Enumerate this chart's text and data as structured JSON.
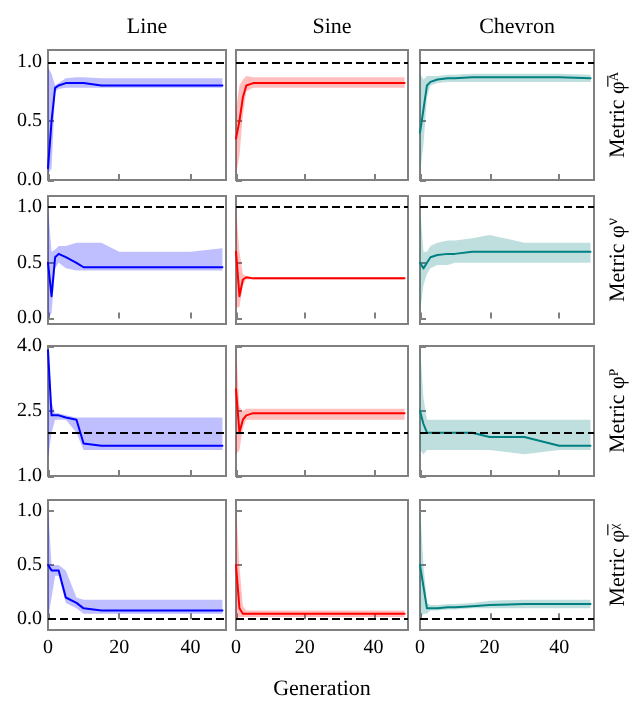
{
  "chart_data": [
    {
      "type": "line",
      "title": "Line",
      "x": [
        0,
        1,
        2,
        3,
        5,
        8,
        10,
        15,
        20,
        30,
        40,
        49
      ],
      "xlim": [
        0,
        50
      ],
      "xticks": [
        {
          "value": 0,
          "label": null
        },
        {
          "value": 20,
          "label": null
        },
        {
          "value": 40,
          "label": null
        }
      ],
      "ylim": [
        0,
        1.1
      ],
      "yticks": [
        {
          "value": 0,
          "label": "0.0"
        },
        {
          "value": 0.5,
          "label": "0.5"
        },
        {
          "value": 1,
          "label": "1.0"
        }
      ],
      "tick_labels": "y",
      "marker": "none",
      "ref_lines": [
        {
          "axis": "y",
          "value": 1,
          "color": "#000000",
          "line_style": "dashed"
        }
      ],
      "series": [
        {
          "color": "#0000ff",
          "values": [
            0.1,
            0.5,
            0.78,
            0.8,
            0.82,
            0.82,
            0.82,
            0.8,
            0.8,
            0.8,
            0.8,
            0.8
          ],
          "lower": [
            0.05,
            0.1,
            0.75,
            0.77,
            0.78,
            0.78,
            0.78,
            0.78,
            0.78,
            0.78,
            0.78,
            0.78
          ],
          "upper": [
            0.95,
            0.9,
            0.8,
            0.82,
            0.86,
            0.87,
            0.87,
            0.86,
            0.86,
            0.86,
            0.86,
            0.86
          ]
        }
      ]
    },
    {
      "type": "line",
      "title": "Sine",
      "x": [
        0,
        1,
        2,
        3,
        5,
        8,
        10,
        15,
        20,
        30,
        40,
        49
      ],
      "xlim": [
        0,
        50
      ],
      "xticks": [
        {
          "value": 0,
          "label": null
        },
        {
          "value": 20,
          "label": null
        },
        {
          "value": 40,
          "label": null
        }
      ],
      "ylim": [
        0,
        1.1
      ],
      "yticks": [
        {
          "value": 0,
          "label": null
        },
        {
          "value": 0.5,
          "label": null
        },
        {
          "value": 1,
          "label": null
        }
      ],
      "tick_labels": false,
      "marker": "none",
      "ref_lines": [
        {
          "axis": "y",
          "value": 1,
          "color": "#000000",
          "line_style": "dashed"
        }
      ],
      "series": [
        {
          "color": "#ff0000",
          "values": [
            0.35,
            0.5,
            0.7,
            0.8,
            0.82,
            0.82,
            0.82,
            0.82,
            0.82,
            0.82,
            0.82,
            0.82
          ],
          "lower": [
            0.05,
            0.2,
            0.55,
            0.75,
            0.78,
            0.78,
            0.78,
            0.78,
            0.78,
            0.78,
            0.78,
            0.78
          ],
          "upper": [
            0.6,
            0.8,
            0.85,
            0.88,
            0.87,
            0.87,
            0.87,
            0.87,
            0.87,
            0.87,
            0.87,
            0.87
          ]
        }
      ]
    },
    {
      "type": "line",
      "title": "Chevron",
      "ylabel": "Metric φ̅ᴬ",
      "x": [
        0,
        1,
        2,
        3,
        5,
        8,
        10,
        15,
        20,
        30,
        40,
        49
      ],
      "xlim": [
        0,
        50
      ],
      "xticks": [
        {
          "value": 0,
          "label": null
        },
        {
          "value": 20,
          "label": null
        },
        {
          "value": 40,
          "label": null
        }
      ],
      "ylim": [
        0,
        1.1
      ],
      "yticks": [
        {
          "value": 0,
          "label": null
        },
        {
          "value": 0.5,
          "label": null
        },
        {
          "value": 1,
          "label": null
        }
      ],
      "tick_labels": false,
      "marker": "none",
      "ref_lines": [
        {
          "axis": "y",
          "value": 1,
          "color": "#000000",
          "line_style": "dashed"
        }
      ],
      "series": [
        {
          "color": "#008080",
          "values": [
            0.4,
            0.6,
            0.8,
            0.83,
            0.85,
            0.86,
            0.86,
            0.87,
            0.87,
            0.87,
            0.87,
            0.86
          ],
          "lower": [
            0.05,
            0.3,
            0.7,
            0.8,
            0.82,
            0.83,
            0.83,
            0.83,
            0.83,
            0.83,
            0.83,
            0.83
          ],
          "upper": [
            0.9,
            0.85,
            0.88,
            0.88,
            0.88,
            0.89,
            0.89,
            0.9,
            0.9,
            0.9,
            0.9,
            0.89
          ]
        }
      ]
    },
    {
      "type": "line",
      "x": [
        0,
        1,
        2,
        3,
        5,
        8,
        10,
        15,
        20,
        30,
        40,
        49
      ],
      "xlim": [
        0,
        50
      ],
      "xticks": [
        {
          "value": 0,
          "label": null
        },
        {
          "value": 20,
          "label": null
        },
        {
          "value": 40,
          "label": null
        }
      ],
      "ylim": [
        -0.05,
        1.1
      ],
      "yticks": [
        {
          "value": 0,
          "label": "0.0"
        },
        {
          "value": 0.5,
          "label": "0.5"
        },
        {
          "value": 1,
          "label": "1.0"
        }
      ],
      "tick_labels": "y",
      "marker": "none",
      "ref_lines": [
        {
          "axis": "y",
          "value": 1,
          "color": "#000000",
          "line_style": "dashed"
        }
      ],
      "series": [
        {
          "color": "#0000ff",
          "values": [
            0.5,
            0.2,
            0.55,
            0.58,
            0.55,
            0.5,
            0.46,
            0.46,
            0.46,
            0.46,
            0.46,
            0.46
          ],
          "lower": [
            0.0,
            0.05,
            0.45,
            0.5,
            0.45,
            0.43,
            0.43,
            0.43,
            0.43,
            0.43,
            0.43,
            0.43
          ],
          "upper": [
            1.0,
            0.6,
            0.62,
            0.65,
            0.65,
            0.68,
            0.68,
            0.68,
            0.6,
            0.6,
            0.6,
            0.63
          ]
        }
      ]
    },
    {
      "type": "line",
      "x": [
        0,
        1,
        2,
        3,
        5,
        8,
        10,
        15,
        20,
        30,
        40,
        49
      ],
      "xlim": [
        0,
        50
      ],
      "xticks": [
        {
          "value": 0,
          "label": null
        },
        {
          "value": 20,
          "label": null
        },
        {
          "value": 40,
          "label": null
        }
      ],
      "ylim": [
        -0.05,
        1.1
      ],
      "yticks": [
        {
          "value": 0,
          "label": null
        },
        {
          "value": 0.5,
          "label": null
        },
        {
          "value": 1,
          "label": null
        }
      ],
      "tick_labels": false,
      "marker": "none",
      "ref_lines": [
        {
          "axis": "y",
          "value": 1,
          "color": "#000000",
          "line_style": "dashed"
        }
      ],
      "series": [
        {
          "color": "#ff0000",
          "values": [
            0.6,
            0.2,
            0.35,
            0.37,
            0.36,
            0.36,
            0.36,
            0.36,
            0.36,
            0.36,
            0.36,
            0.36
          ],
          "lower": [
            0.1,
            0.1,
            0.3,
            0.35,
            0.35,
            0.35,
            0.35,
            0.35,
            0.35,
            0.35,
            0.35,
            0.35
          ],
          "upper": [
            1.0,
            0.6,
            0.4,
            0.38,
            0.37,
            0.37,
            0.37,
            0.37,
            0.37,
            0.37,
            0.37,
            0.37
          ]
        }
      ]
    },
    {
      "type": "line",
      "ylabel": "Metric φ$^{ν}$",
      "x": [
        0,
        1,
        2,
        3,
        5,
        8,
        10,
        15,
        20,
        30,
        40,
        49
      ],
      "xlim": [
        0,
        50
      ],
      "xticks": [
        {
          "value": 0,
          "label": null
        },
        {
          "value": 20,
          "label": null
        },
        {
          "value": 40,
          "label": null
        }
      ],
      "ylim": [
        -0.05,
        1.1
      ],
      "yticks": [
        {
          "value": 0,
          "label": null
        },
        {
          "value": 0.5,
          "label": null
        },
        {
          "value": 1,
          "label": null
        }
      ],
      "tick_labels": false,
      "marker": "none",
      "ref_lines": [
        {
          "axis": "y",
          "value": 1,
          "color": "#000000",
          "line_style": "dashed"
        }
      ],
      "series": [
        {
          "color": "#008080",
          "values": [
            0.5,
            0.45,
            0.5,
            0.55,
            0.57,
            0.58,
            0.58,
            0.6,
            0.6,
            0.6,
            0.6,
            0.6
          ],
          "lower": [
            0.05,
            0.3,
            0.4,
            0.45,
            0.48,
            0.48,
            0.5,
            0.5,
            0.5,
            0.5,
            0.5,
            0.5
          ],
          "upper": [
            1.0,
            0.6,
            0.6,
            0.65,
            0.68,
            0.7,
            0.7,
            0.72,
            0.75,
            0.68,
            0.68,
            0.68
          ]
        }
      ]
    },
    {
      "type": "line",
      "x": [
        0,
        1,
        2,
        3,
        5,
        8,
        10,
        15,
        20,
        30,
        40,
        49
      ],
      "xlim": [
        0,
        50
      ],
      "xticks": [
        {
          "value": 0,
          "label": null
        },
        {
          "value": 20,
          "label": null
        },
        {
          "value": 40,
          "label": null
        }
      ],
      "ylim": [
        1,
        4
      ],
      "yticks": [
        {
          "value": 1,
          "label": "1.0"
        },
        {
          "value": 2.5,
          "label": "2.5"
        },
        {
          "value": 4,
          "label": "4.0"
        }
      ],
      "tick_labels": "y",
      "marker": "none",
      "ref_lines": [
        {
          "axis": "y",
          "value": 2,
          "color": "#000000",
          "line_style": "dashed"
        }
      ],
      "series": [
        {
          "color": "#0000ff",
          "values": [
            3.9,
            2.4,
            2.4,
            2.4,
            2.35,
            2.3,
            1.75,
            1.7,
            1.7,
            1.7,
            1.7,
            1.7
          ],
          "lower": [
            1.4,
            2.0,
            2.3,
            2.3,
            2.3,
            2.0,
            1.6,
            1.6,
            1.6,
            1.6,
            1.6,
            1.6
          ],
          "upper": [
            4.0,
            2.7,
            2.45,
            2.45,
            2.4,
            2.35,
            2.35,
            2.35,
            2.35,
            2.35,
            2.35,
            2.35
          ]
        }
      ]
    },
    {
      "type": "line",
      "x": [
        0,
        1,
        2,
        3,
        5,
        8,
        10,
        15,
        20,
        30,
        40,
        49
      ],
      "xlim": [
        0,
        50
      ],
      "xticks": [
        {
          "value": 0,
          "label": null
        },
        {
          "value": 20,
          "label": null
        },
        {
          "value": 40,
          "label": null
        }
      ],
      "ylim": [
        1,
        4
      ],
      "yticks": [
        {
          "value": 1,
          "label": null
        },
        {
          "value": 2.5,
          "label": null
        },
        {
          "value": 4,
          "label": null
        }
      ],
      "tick_labels": false,
      "marker": "none",
      "ref_lines": [
        {
          "axis": "y",
          "value": 2,
          "color": "#000000",
          "line_style": "dashed"
        }
      ],
      "series": [
        {
          "color": "#ff0000",
          "values": [
            3.0,
            2.0,
            2.3,
            2.4,
            2.45,
            2.45,
            2.45,
            2.45,
            2.45,
            2.45,
            2.45,
            2.45
          ],
          "lower": [
            1.5,
            1.6,
            2.1,
            2.3,
            2.3,
            2.3,
            2.3,
            2.3,
            2.3,
            2.3,
            2.3,
            2.3
          ],
          "upper": [
            4.0,
            2.6,
            2.5,
            2.55,
            2.55,
            2.55,
            2.55,
            2.55,
            2.55,
            2.55,
            2.55,
            2.55
          ]
        }
      ]
    },
    {
      "type": "line",
      "ylabel": "Metric φᴾ",
      "x": [
        0,
        1,
        2,
        3,
        5,
        8,
        10,
        15,
        20,
        30,
        40,
        49
      ],
      "xlim": [
        0,
        50
      ],
      "xticks": [
        {
          "value": 0,
          "label": null
        },
        {
          "value": 20,
          "label": null
        },
        {
          "value": 40,
          "label": null
        }
      ],
      "ylim": [
        1,
        4
      ],
      "yticks": [
        {
          "value": 1,
          "label": null
        },
        {
          "value": 2.5,
          "label": null
        },
        {
          "value": 4,
          "label": null
        }
      ],
      "tick_labels": false,
      "marker": "none",
      "ref_lines": [
        {
          "axis": "y",
          "value": 2,
          "color": "#000000",
          "line_style": "dashed"
        }
      ],
      "series": [
        {
          "color": "#008080",
          "values": [
            2.5,
            2.2,
            2.0,
            2.0,
            2.0,
            2.0,
            2.0,
            2.0,
            1.9,
            1.9,
            1.7,
            1.7
          ],
          "lower": [
            1.6,
            1.5,
            1.6,
            1.6,
            1.6,
            1.6,
            1.6,
            1.6,
            1.6,
            1.5,
            1.6,
            1.6
          ],
          "upper": [
            4.0,
            2.8,
            2.3,
            2.3,
            2.3,
            2.3,
            2.3,
            2.3,
            2.3,
            2.3,
            2.3,
            2.3
          ]
        }
      ]
    },
    {
      "type": "line",
      "x": [
        0,
        1,
        2,
        3,
        5,
        8,
        10,
        15,
        20,
        30,
        40,
        49
      ],
      "xlim": [
        0,
        50
      ],
      "xticks": [
        0,
        20,
        40
      ],
      "ylim": [
        -0.1,
        1.1
      ],
      "yticks": [
        {
          "value": 0,
          "label": "0.0"
        },
        {
          "value": 0.5,
          "label": "0.5"
        },
        {
          "value": 1,
          "label": "1.0"
        }
      ],
      "marker": "none",
      "ref_lines": [
        {
          "axis": "y",
          "value": 0,
          "color": "#000000",
          "line_style": "dashed"
        }
      ],
      "series": [
        {
          "color": "#0000ff",
          "values": [
            0.5,
            0.45,
            0.45,
            0.45,
            0.2,
            0.15,
            0.1,
            0.08,
            0.08,
            0.08,
            0.08,
            0.08
          ],
          "lower": [
            0.0,
            0.2,
            0.4,
            0.4,
            0.15,
            0.1,
            0.05,
            0.05,
            0.05,
            0.05,
            0.05,
            0.05
          ],
          "upper": [
            1.05,
            0.5,
            0.5,
            0.5,
            0.45,
            0.2,
            0.18,
            0.18,
            0.18,
            0.18,
            0.18,
            0.18
          ]
        }
      ]
    },
    {
      "type": "line",
      "xlabel": "Generation",
      "x": [
        0,
        1,
        2,
        3,
        5,
        8,
        10,
        15,
        20,
        30,
        40,
        49
      ],
      "xlim": [
        0,
        50
      ],
      "xticks": [
        0,
        20,
        40
      ],
      "ylim": [
        -0.1,
        1.1
      ],
      "yticks": [
        {
          "value": 0,
          "label": null
        },
        {
          "value": 0.5,
          "label": null
        },
        {
          "value": 1,
          "label": null
        }
      ],
      "tick_labels": "x",
      "marker": "none",
      "ref_lines": [
        {
          "axis": "y",
          "value": 0,
          "color": "#000000",
          "line_style": "dashed"
        }
      ],
      "series": [
        {
          "color": "#ff0000",
          "values": [
            0.5,
            0.1,
            0.05,
            0.05,
            0.05,
            0.05,
            0.05,
            0.05,
            0.05,
            0.05,
            0.05,
            0.05
          ],
          "lower": [
            0.0,
            0.02,
            0.02,
            0.02,
            0.02,
            0.02,
            0.02,
            0.02,
            0.02,
            0.02,
            0.02,
            0.02
          ],
          "upper": [
            1.05,
            0.5,
            0.12,
            0.08,
            0.08,
            0.08,
            0.08,
            0.08,
            0.08,
            0.08,
            0.08,
            0.08
          ]
        }
      ]
    },
    {
      "type": "line",
      "ylabel": "Metric φ̅ᵡ",
      "x": [
        0,
        1,
        2,
        3,
        5,
        8,
        10,
        15,
        20,
        30,
        40,
        49
      ],
      "xlim": [
        0,
        50
      ],
      "xticks": [
        0,
        20,
        40
      ],
      "ylim": [
        -0.1,
        1.1
      ],
      "yticks": [
        {
          "value": 0,
          "label": null
        },
        {
          "value": 0.5,
          "label": null
        },
        {
          "value": 1,
          "label": null
        }
      ],
      "tick_labels": "x",
      "marker": "none",
      "ref_lines": [
        {
          "axis": "y",
          "value": 0,
          "color": "#000000",
          "line_style": "dashed"
        }
      ],
      "series": [
        {
          "color": "#008080",
          "values": [
            0.5,
            0.3,
            0.1,
            0.1,
            0.1,
            0.11,
            0.11,
            0.12,
            0.13,
            0.14,
            0.14,
            0.14
          ],
          "lower": [
            0.0,
            0.05,
            0.05,
            0.08,
            0.08,
            0.09,
            0.09,
            0.1,
            0.1,
            0.1,
            0.1,
            0.1
          ],
          "upper": [
            1.05,
            0.5,
            0.15,
            0.13,
            0.13,
            0.14,
            0.14,
            0.15,
            0.17,
            0.18,
            0.18,
            0.18
          ]
        }
      ]
    }
  ]
}
